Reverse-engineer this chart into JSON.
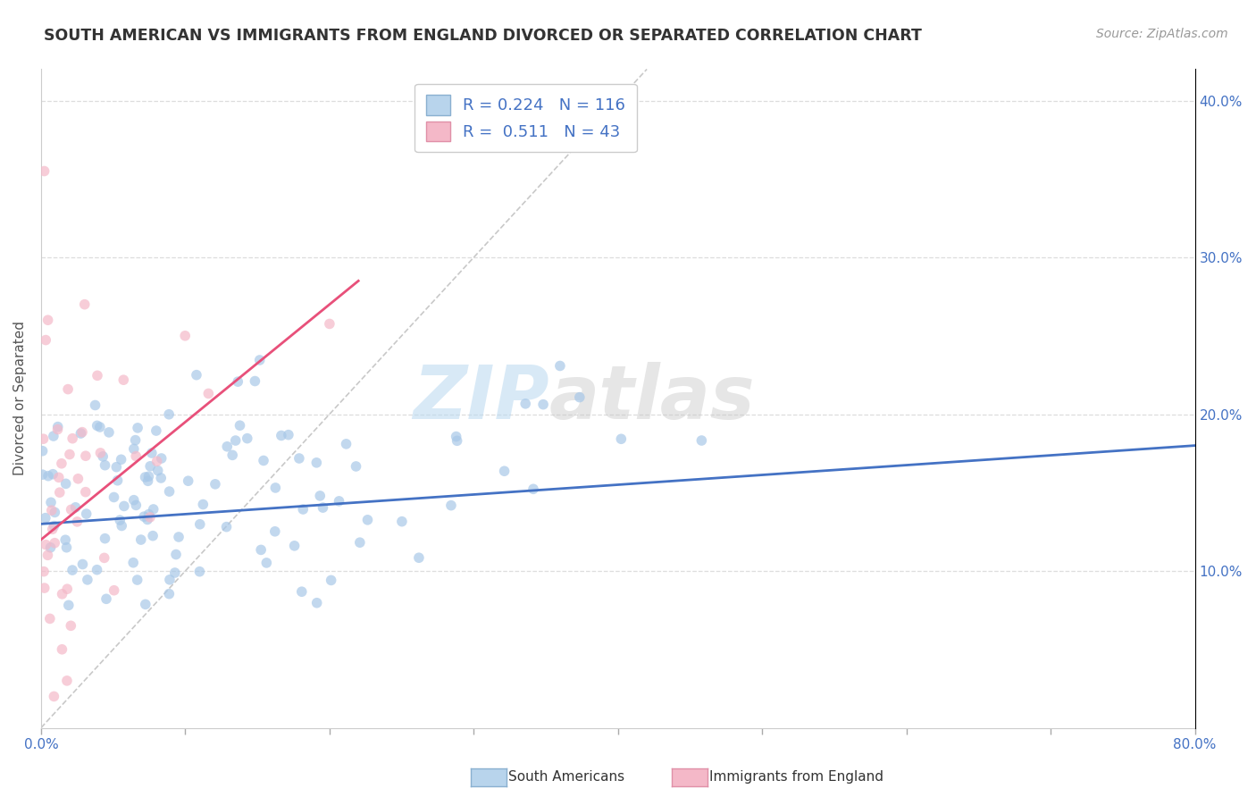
{
  "title": "SOUTH AMERICAN VS IMMIGRANTS FROM ENGLAND DIVORCED OR SEPARATED CORRELATION CHART",
  "source": "Source: ZipAtlas.com",
  "ylabel": "Divorced or Separated",
  "legend_label1": "South Americans",
  "legend_label2": "Immigrants from England",
  "R1": "0.224",
  "N1": "116",
  "R2": "0.511",
  "N2": "43",
  "color_blue": "#a8c8e8",
  "color_blue_line": "#4472c4",
  "color_pink": "#f4b8c8",
  "color_pink_line": "#e8507a",
  "watermark_color": "#cce5f5",
  "xmin": 0.0,
  "xmax": 80.0,
  "ymin": 0.0,
  "ymax": 42.0,
  "ytick_vals": [
    10.0,
    20.0,
    30.0,
    40.0
  ],
  "grid_color": "#dddddd",
  "bg_color": "#ffffff",
  "blue_trend": [
    0.0,
    80.0,
    13.0,
    18.0
  ],
  "pink_trend": [
    0.0,
    22.0,
    12.0,
    28.5
  ]
}
